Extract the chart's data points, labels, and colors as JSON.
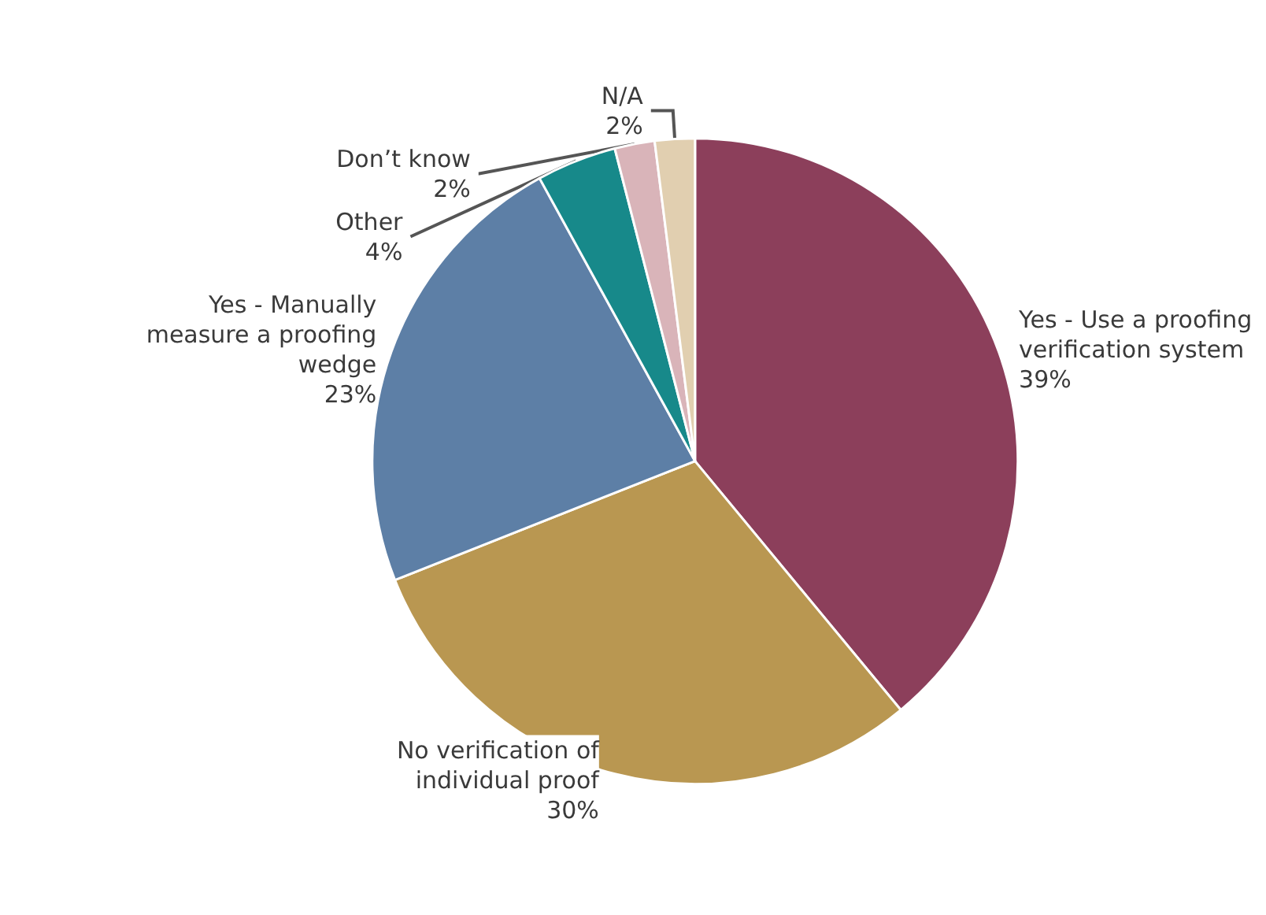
{
  "chart_data": {
    "type": "pie",
    "categories": [
      "Yes - Use a proofing verification system",
      "No verification of individual proof",
      "Yes - Manually measure a proofing wedge",
      "Other",
      "Don’t know",
      "N/A"
    ],
    "values": [
      39,
      30,
      23,
      4,
      2,
      2
    ],
    "value_labels": [
      "39%",
      "30%",
      "23%",
      "4%",
      "2%",
      "2%"
    ],
    "colors": [
      "#8c3f5b",
      "#b99751",
      "#5d7fa6",
      "#17898a",
      "#d9b4b9",
      "#e1cfb0"
    ],
    "legend": false
  }
}
